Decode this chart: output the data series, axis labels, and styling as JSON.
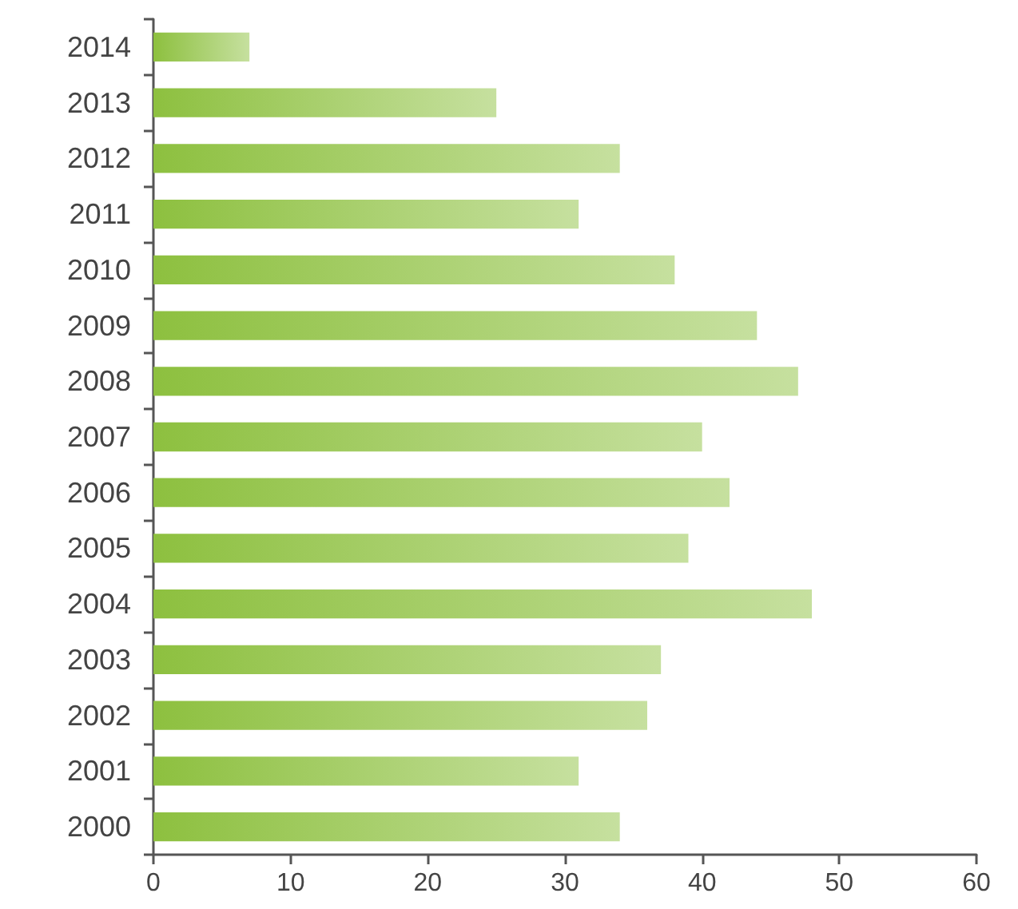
{
  "chart_data": {
    "type": "bar",
    "orientation": "horizontal",
    "categories": [
      "2014",
      "2013",
      "2012",
      "2011",
      "2010",
      "2009",
      "2008",
      "2007",
      "2006",
      "2005",
      "2004",
      "2003",
      "2002",
      "2001",
      "2000"
    ],
    "values": [
      7,
      25,
      34,
      31,
      38,
      44,
      47,
      40,
      42,
      39,
      48,
      37,
      36,
      31,
      34
    ],
    "color": "#8dc03f",
    "xlim": [
      0,
      60
    ],
    "xticks": [
      0,
      10,
      20,
      30,
      40,
      50,
      60
    ],
    "grid": false
  }
}
